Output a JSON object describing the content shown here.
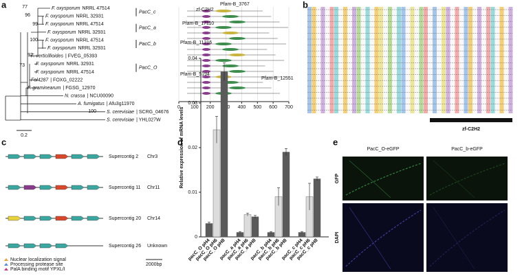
{
  "panels": [
    "a",
    "b",
    "c",
    "d",
    "e"
  ],
  "tree": {
    "leaves": [
      {
        "species": "F. oxysporum",
        "id": "NRRL 47514"
      },
      {
        "species": "F. oxysporum",
        "id": "NRRL 32931"
      },
      {
        "species": "F. oxysporum",
        "id": "NRRL 47514"
      },
      {
        "species": "F. oxysporum",
        "id": "NRRL 32931"
      },
      {
        "species": "F. oxysporum",
        "id": "NRRL 47514"
      },
      {
        "species": "F. oxysporum",
        "id": "NRRL 32931"
      },
      {
        "species": "F. verticillioides",
        "id": "| FVEG_05393"
      },
      {
        "species": "F. oxysporum",
        "id": "NRRL 32931"
      },
      {
        "species": "F. oxysporum",
        "id": "NRRL 47514"
      },
      {
        "species": "Fol4287",
        "id": "| FOXG_02222"
      },
      {
        "species": "F. graminearum",
        "id": "| FGSG_12970"
      },
      {
        "species": "N. crassa",
        "id": "| NCU00090"
      },
      {
        "species": "A. fumigatus",
        "id": "| Afu3g11970"
      },
      {
        "species": "S. cerevisiae",
        "id": "| SCRG_04676"
      },
      {
        "species": "S. cerevisiae",
        "id": "| YHL027W"
      }
    ],
    "bootstraps": [
      77,
      96,
      99,
      100,
      92,
      73,
      100
    ],
    "clades": [
      "PacC_c",
      "PacC_a",
      "PacC_b",
      "PacC_O"
    ],
    "scale": "0.2"
  },
  "domains": {
    "labels": [
      "zf-C2H2",
      "Pfam-B_3767",
      "Pfam-B_17110",
      "Pfam-B_11216",
      "Pfam-B_5194",
      "Pfam-B_12551"
    ],
    "xticks": [
      0,
      100,
      200,
      300,
      400,
      500,
      600,
      700
    ],
    "xlim": [
      0,
      700
    ]
  },
  "alignment": {
    "motif": "zf-C2H2"
  },
  "clusters": {
    "contigs": [
      {
        "name": "Supercontig 2",
        "chr": "Chr3"
      },
      {
        "name": "Supercontig 11",
        "chr": "Chr11"
      },
      {
        "name": "Supercontig 20",
        "chr": "Chr14"
      },
      {
        "name": "Supercontig 26",
        "chr": "Unknown"
      }
    ],
    "legend": [
      "Nuclear localization signal",
      "Processing protease site",
      "PalA binding motif YPXL/I"
    ],
    "scale": "2000bp"
  },
  "chart_data": {
    "type": "bar",
    "ylabel": "Relative expression of mRNA levels",
    "categories": [
      "pacC_O pH4",
      "pacC_O pH6",
      "pacC_O pH8",
      "pacC_a pH4",
      "pacC_a pH6",
      "pacC_a pH8",
      "pacC_b pH4",
      "pacC_b pH6",
      "pacC_b pH8",
      "pacC_c pH4",
      "pacC_c pH6",
      "pacC_c pH8"
    ],
    "values": [
      0.003,
      0.024,
      0.037,
      0.001,
      0.005,
      0.0045,
      0.001,
      0.009,
      0.019,
      0.001,
      0.009,
      0.013
    ],
    "errors": [
      0.0003,
      0.003,
      0.002,
      0.0002,
      0.0003,
      0.0003,
      0.0002,
      0.002,
      0.0008,
      0.0002,
      0.003,
      0.0004
    ],
    "colors": [
      "#5a5a5a",
      "#dcdcdc",
      "#5a5a5a",
      "#5a5a5a",
      "#dcdcdc",
      "#5a5a5a",
      "#5a5a5a",
      "#dcdcdc",
      "#5a5a5a",
      "#5a5a5a",
      "#dcdcdc",
      "#5a5a5a"
    ],
    "ylim": [
      0,
      0.04
    ],
    "yticks": [
      0,
      0.01,
      0.02,
      0.03,
      0.04
    ]
  },
  "microscopy": {
    "columns": [
      "PacC_O-eGFP",
      "PacC_b-eGFP"
    ],
    "rows": [
      "GFP",
      "DAPI"
    ]
  }
}
